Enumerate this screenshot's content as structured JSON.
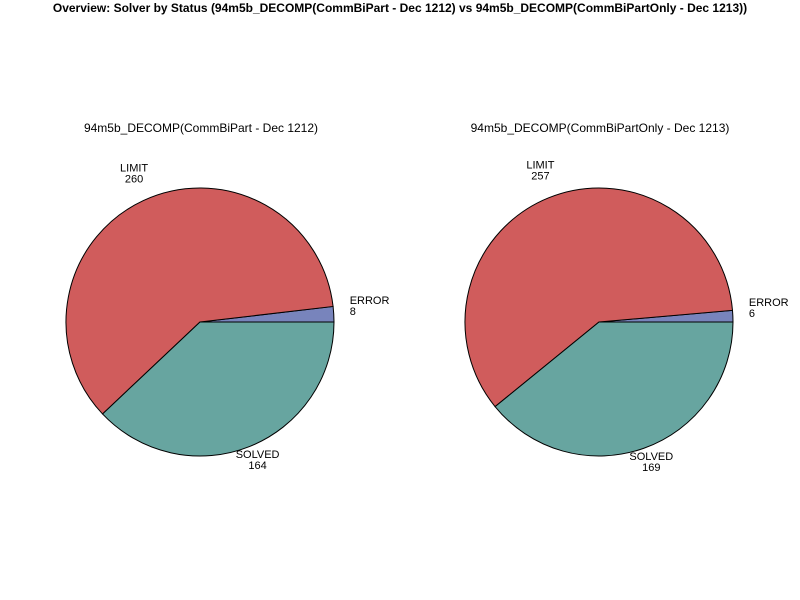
{
  "title": "Overview: Solver by Status (94m5b_DECOMP(CommBiPart - Dec 1212) vs 94m5b_DECOMP(CommBiPartOnly - Dec 1213))",
  "colors": {
    "LIMIT": "#d05c5c",
    "SOLVED": "#67a5a0",
    "ERROR": "#7884bc"
  },
  "chart_data": [
    {
      "type": "pie",
      "title": "94m5b_DECOMP(CommBiPart - Dec 1212)",
      "slices": [
        {
          "label": "ERROR",
          "value": 8
        },
        {
          "label": "LIMIT",
          "value": 260
        },
        {
          "label": "SOLVED",
          "value": 164
        }
      ]
    },
    {
      "type": "pie",
      "title": "94m5b_DECOMP(CommBiPartOnly - Dec 1213)",
      "slices": [
        {
          "label": "ERROR",
          "value": 6
        },
        {
          "label": "LIMIT",
          "value": 257
        },
        {
          "label": "SOLVED",
          "value": 169
        }
      ]
    }
  ]
}
